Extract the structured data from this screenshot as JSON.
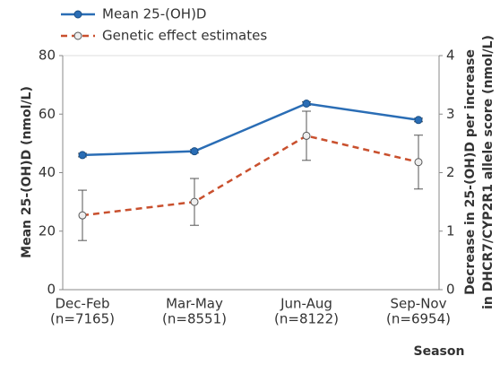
{
  "chart_data": {
    "type": "line",
    "categories": [
      [
        "Dec-Feb",
        "(n=7165)"
      ],
      [
        "Mar-May",
        "(n=8551)"
      ],
      [
        "Jun-Aug",
        "(n=8122)"
      ],
      [
        "Sep-Nov",
        "(n=6954)"
      ]
    ],
    "x_label": "Season",
    "y_label": "Mean 25-(OH)D (nmol/L)",
    "y2_label": [
      "Decrease in 25-(OH)D per increase",
      "in DHCR7/CYP2R1 allele score (nmol/L)"
    ],
    "ylim": [
      0,
      80
    ],
    "yticks": [
      0,
      20,
      40,
      60,
      80
    ],
    "y2lim": [
      0,
      4
    ],
    "y2ticks": [
      0,
      1,
      2,
      3,
      4
    ],
    "series": [
      {
        "name": "Mean 25-(OH)D",
        "color": "#2a6db5",
        "dashed": false,
        "values": [
          46,
          47.3,
          63.6,
          58
        ],
        "errors": [
          0.6,
          0.6,
          0.6,
          0.6
        ]
      },
      {
        "name": "Genetic effect estimates",
        "color": "#c9502e",
        "dashed": true,
        "axis": "y2",
        "values": [
          1.27,
          1.5,
          2.63,
          2.18
        ],
        "errors": [
          0.43,
          0.4,
          0.42,
          0.46
        ]
      }
    ]
  }
}
